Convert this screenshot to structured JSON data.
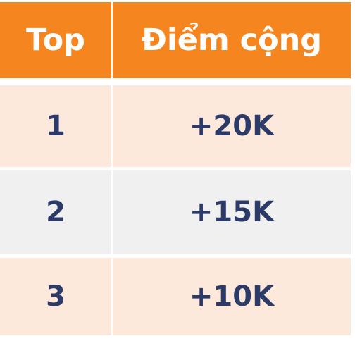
{
  "table": {
    "headers": {
      "top": "Top",
      "points": "Điểm cộng"
    },
    "rows": [
      {
        "rank": "1",
        "points": "+20K"
      },
      {
        "rank": "2",
        "points": "+15K"
      },
      {
        "rank": "3",
        "points": "+10K"
      }
    ],
    "colors": {
      "header_bg": "#f5861f",
      "header_text": "#ffffff",
      "row_peach": "#fde9dc",
      "row_gray": "#f0f0f0",
      "body_text": "#2b3a67"
    }
  }
}
